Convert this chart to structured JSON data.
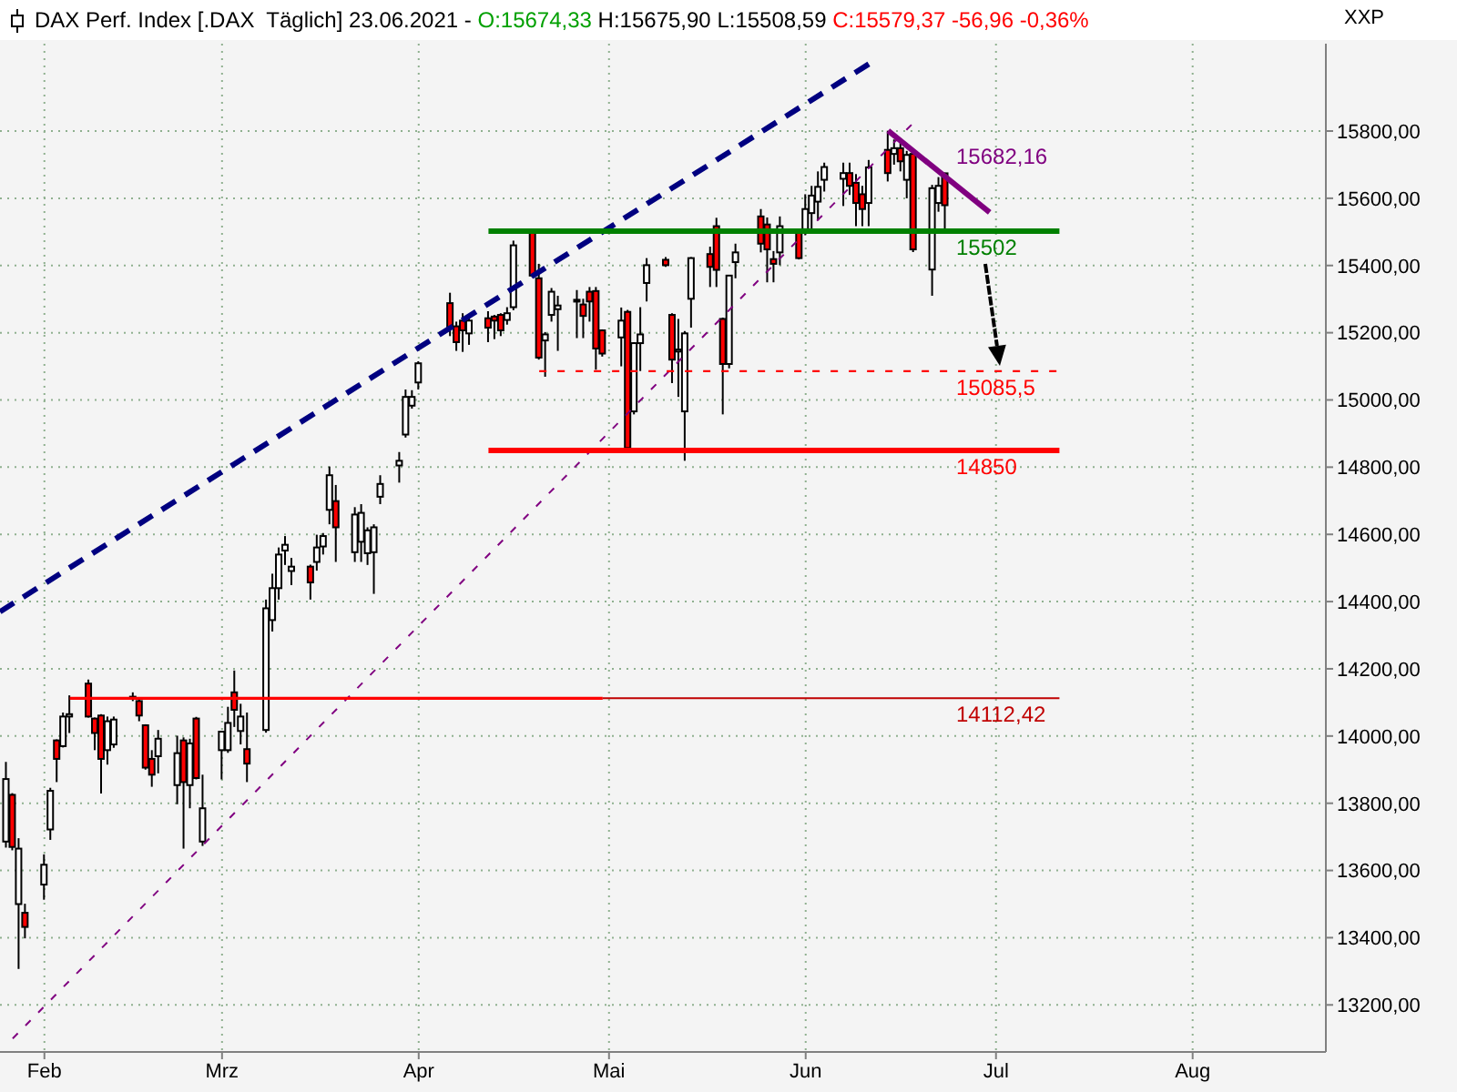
{
  "chart_data": {
    "type": "candlestick",
    "title": "DAX Perf. Index [.DAX  Täglich] 23.06.2021 -",
    "ylabel": "XXP",
    "x": [
      "2021-01-26",
      "2021-01-27",
      "2021-01-28",
      "2021-01-29",
      "2021-02-01",
      "2021-02-02",
      "2021-02-03",
      "2021-02-04",
      "2021-02-05",
      "2021-02-08",
      "2021-02-09",
      "2021-02-10",
      "2021-02-11",
      "2021-02-12",
      "2021-02-15",
      "2021-02-16",
      "2021-02-17",
      "2021-02-18",
      "2021-02-19",
      "2021-02-22",
      "2021-02-23",
      "2021-02-24",
      "2021-02-25",
      "2021-02-26",
      "2021-03-01",
      "2021-03-02",
      "2021-03-03",
      "2021-03-04",
      "2021-03-05",
      "2021-03-08",
      "2021-03-09",
      "2021-03-10",
      "2021-03-11",
      "2021-03-12",
      "2021-03-15",
      "2021-03-16",
      "2021-03-17",
      "2021-03-18",
      "2021-03-19",
      "2021-03-22",
      "2021-03-23",
      "2021-03-24",
      "2021-03-25",
      "2021-03-26",
      "2021-03-29",
      "2021-03-30",
      "2021-03-31",
      "2021-04-01",
      "2021-04-06",
      "2021-04-07",
      "2021-04-08",
      "2021-04-09",
      "2021-04-12",
      "2021-04-13",
      "2021-04-14",
      "2021-04-15",
      "2021-04-16",
      "2021-04-19",
      "2021-04-20",
      "2021-04-21",
      "2021-04-22",
      "2021-04-23",
      "2021-04-26",
      "2021-04-27",
      "2021-04-28",
      "2021-04-29",
      "2021-04-30",
      "2021-05-03",
      "2021-05-04",
      "2021-05-05",
      "2021-05-06",
      "2021-05-07",
      "2021-05-10",
      "2021-05-11",
      "2021-05-12",
      "2021-05-13",
      "2021-05-14",
      "2021-05-17",
      "2021-05-18",
      "2021-05-19",
      "2021-05-20",
      "2021-05-21",
      "2021-05-25",
      "2021-05-26",
      "2021-05-27",
      "2021-05-28",
      "2021-05-31",
      "2021-06-01",
      "2021-06-02",
      "2021-06-03",
      "2021-06-04",
      "2021-06-07",
      "2021-06-08",
      "2021-06-09",
      "2021-06-10",
      "2021-06-11",
      "2021-06-14",
      "2021-06-15",
      "2021-06-16",
      "2021-06-17",
      "2021-06-18",
      "2021-06-21",
      "2021-06-22",
      "2021-06-23"
    ],
    "ohlc": [
      [
        13686,
        13923,
        13668,
        13872
      ],
      [
        13825,
        13830,
        13660,
        13670
      ],
      [
        13500,
        13696,
        13307,
        13665
      ],
      [
        13474,
        13501,
        13398,
        13432
      ],
      [
        13558,
        13648,
        13513,
        13617
      ],
      [
        13722,
        13846,
        13691,
        13837
      ],
      [
        13987,
        13990,
        13863,
        13932
      ],
      [
        13970,
        14070,
        13966,
        14058
      ],
      [
        14058,
        14121,
        14009,
        14065
      ],
      [
        14156,
        14168,
        14055,
        14058
      ],
      [
        14052,
        14055,
        13958,
        14009
      ],
      [
        14061,
        14065,
        13829,
        13932
      ],
      [
        13958,
        14058,
        13915,
        14044
      ],
      [
        13975,
        14058,
        13965,
        14049
      ],
      [
        14113,
        14130,
        14104,
        14117
      ],
      [
        14104,
        14113,
        14044,
        14061
      ],
      [
        14032,
        14035,
        13900,
        13906
      ],
      [
        13932,
        13958,
        13849,
        13885
      ],
      [
        13940,
        14018,
        13889,
        13992
      ],
      [
        13854,
        14001,
        13797,
        13949
      ],
      [
        13987,
        13996,
        13665,
        13863
      ],
      [
        13854,
        13992,
        13785,
        13978
      ],
      [
        14052,
        14057,
        13871,
        13875
      ],
      [
        13686,
        13885,
        13673,
        13785
      ],
      [
        13958,
        14015,
        13871,
        14013
      ],
      [
        13958,
        14087,
        13950,
        14039
      ],
      [
        14130,
        14195,
        14027,
        14078
      ],
      [
        14015,
        14096,
        13975,
        14058
      ],
      [
        13961,
        14070,
        13863,
        13918
      ],
      [
        14018,
        14406,
        14010,
        14380
      ],
      [
        14345,
        14483,
        14311,
        14440
      ],
      [
        14440,
        14561,
        14406,
        14540
      ],
      [
        14552,
        14595,
        14509,
        14569
      ],
      [
        14491,
        14530,
        14449,
        14504
      ],
      [
        14504,
        14510,
        14406,
        14457
      ],
      [
        14518,
        14599,
        14492,
        14561
      ],
      [
        14564,
        14604,
        14540,
        14595
      ],
      [
        14673,
        14802,
        14630,
        14776
      ],
      [
        14699,
        14747,
        14518,
        14621
      ],
      [
        14547,
        14681,
        14518,
        14659
      ],
      [
        14578,
        14690,
        14518,
        14664
      ],
      [
        14544,
        14621,
        14509,
        14612
      ],
      [
        14547,
        14630,
        14423,
        14621
      ],
      [
        14712,
        14776,
        14690,
        14750
      ],
      [
        14805,
        14845,
        14754,
        14819
      ],
      [
        14897,
        15031,
        14888,
        15009
      ],
      [
        14983,
        15029,
        14974,
        15009
      ],
      [
        15052,
        15115,
        15031,
        15109
      ],
      [
        15288,
        15319,
        15190,
        15215
      ],
      [
        15219,
        15233,
        15146,
        15172
      ],
      [
        15236,
        15258,
        15143,
        15207
      ],
      [
        15198,
        15253,
        15164,
        15236
      ],
      [
        15243,
        15264,
        15172,
        15215
      ],
      [
        15248,
        15253,
        15181,
        15236
      ],
      [
        15253,
        15258,
        15190,
        15207
      ],
      [
        15238,
        15276,
        15224,
        15258
      ],
      [
        15276,
        15474,
        15267,
        15460
      ],
      [
        15500,
        15505,
        15365,
        15370
      ],
      [
        15362,
        15405,
        15120,
        15126
      ],
      [
        15177,
        15202,
        15069,
        15195
      ],
      [
        15253,
        15333,
        15233,
        15322
      ],
      [
        15270,
        15310,
        15146,
        15281
      ],
      [
        15293,
        15327,
        15184,
        15298
      ],
      [
        15284,
        15301,
        15184,
        15250
      ],
      [
        15322,
        15336,
        15233,
        15293
      ],
      [
        15324,
        15336,
        15090,
        15153
      ],
      [
        15207,
        15210,
        15129,
        15138
      ],
      [
        15186,
        15275,
        15100,
        15236
      ],
      [
        15262,
        15268,
        14850,
        14857
      ],
      [
        14966,
        15172,
        14957,
        15169
      ],
      [
        15169,
        15276,
        15086,
        15195
      ],
      [
        15348,
        15422,
        15293,
        15401
      ],
      [
        15417,
        15425,
        15396,
        15401
      ],
      [
        15253,
        15258,
        15050,
        15120
      ],
      [
        15144,
        15241,
        15009,
        15150
      ],
      [
        14966,
        15205,
        14819,
        15198
      ],
      [
        15301,
        15425,
        15215,
        15422
      ],
      [
        15434,
        15456,
        15336,
        15396
      ],
      [
        15517,
        15542,
        15336,
        15387
      ],
      [
        15241,
        15245,
        14957,
        15107
      ],
      [
        15107,
        15372,
        15094,
        15370
      ],
      [
        15410,
        15465,
        15362,
        15439
      ],
      [
        15546,
        15568,
        15439,
        15465
      ],
      [
        15522,
        15543,
        15350,
        15448
      ],
      [
        15419,
        15443,
        15350,
        15405
      ],
      [
        15439,
        15546,
        15401,
        15517
      ],
      [
        15500,
        15505,
        15418,
        15422
      ],
      [
        15508,
        15612,
        15490,
        15568
      ],
      [
        15556,
        15637,
        15508,
        15608
      ],
      [
        15590,
        15680,
        15534,
        15634
      ],
      [
        15655,
        15706,
        15620,
        15693
      ],
      [
        15658,
        15706,
        15577,
        15675
      ],
      [
        15675,
        15706,
        15610,
        15637
      ],
      [
        15646,
        15672,
        15517,
        15586
      ],
      [
        15612,
        15637,
        15517,
        15568
      ],
      [
        15586,
        15714,
        15517,
        15692
      ],
      [
        15744,
        15801,
        15650,
        15675
      ],
      [
        15732,
        15775,
        15700,
        15749
      ],
      [
        15749,
        15775,
        15680,
        15710
      ],
      [
        15655,
        15741,
        15600,
        15729
      ],
      [
        15732,
        15740,
        15440,
        15448
      ],
      [
        15388,
        15640,
        15310,
        15630
      ],
      [
        15586,
        15663,
        15560,
        15637
      ],
      [
        15674.33,
        15675.9,
        15508.59,
        15579.37
      ]
    ],
    "xlim": [
      "2021-01-25",
      "2021-08-22"
    ],
    "xticks": [
      {
        "value": "2021-02-01",
        "label": "Feb"
      },
      {
        "value": "2021-03-01",
        "label": "Mrz"
      },
      {
        "value": "2021-04-01",
        "label": "Apr"
      },
      {
        "value": "2021-05-01",
        "label": "Mai"
      },
      {
        "value": "2021-06-01",
        "label": "Jun"
      },
      {
        "value": "2021-07-01",
        "label": "Jul"
      },
      {
        "value": "2021-08-01",
        "label": "Aug"
      }
    ],
    "ylim": [
      13060,
      16060
    ],
    "yticks": [
      {
        "value": 13200,
        "label": "13200,00"
      },
      {
        "value": 13400,
        "label": "13400,00"
      },
      {
        "value": 13600,
        "label": "13600,00"
      },
      {
        "value": 13800,
        "label": "13800,00"
      },
      {
        "value": 14000,
        "label": "14000,00"
      },
      {
        "value": 14200,
        "label": "14200,00"
      },
      {
        "value": 14400,
        "label": "14400,00"
      },
      {
        "value": 14600,
        "label": "14600,00"
      },
      {
        "value": 14800,
        "label": "14800,00"
      },
      {
        "value": 15000,
        "label": "15000,00"
      },
      {
        "value": 15200,
        "label": "15200,00"
      },
      {
        "value": 15400,
        "label": "15400,00"
      },
      {
        "value": 15600,
        "label": "15600,00"
      },
      {
        "value": 15800,
        "label": "15800,00"
      }
    ],
    "grid": true,
    "series": [
      {
        "type": "line",
        "x": [
          "2021-01-25",
          "2021-06-11"
        ],
        "values": [
          14370,
          16000
        ],
        "color": "#000080",
        "line_style": "dashed"
      },
      {
        "type": "line",
        "x": [
          "2021-01-27",
          "2021-06-18"
        ],
        "values": [
          13100,
          15825
        ],
        "color": "#800080",
        "line_style": "dashed"
      },
      {
        "type": "line",
        "x": [
          "2021-06-14",
          "2021-06-30"
        ],
        "values": [
          15801,
          15558
        ],
        "color": "#800080",
        "line_style": "solid"
      },
      {
        "type": "line",
        "x": [
          "2021-04-12",
          "2021-07-11"
        ],
        "values": [
          15502,
          15502
        ],
        "color": "#008000",
        "line_style": "solid"
      },
      {
        "type": "line",
        "x": [
          "2021-04-20",
          "2021-07-11"
        ],
        "values": [
          15085.5,
          15085.5
        ],
        "color": "#ff0000",
        "line_style": "dashed"
      },
      {
        "type": "line",
        "x": [
          "2021-04-12",
          "2021-07-11"
        ],
        "values": [
          14850,
          14850
        ],
        "color": "#ff0000",
        "line_style": "solid"
      },
      {
        "type": "line",
        "x": [
          "2021-02-05",
          "2021-04-30"
        ],
        "values": [
          14112.42,
          14112.42
        ],
        "color": "#ff0000",
        "line_style": "solid"
      },
      {
        "type": "line",
        "x": [
          "2021-04-30",
          "2021-07-11"
        ],
        "values": [
          14112.42,
          14112.42
        ],
        "color": "#c00000",
        "line_style": "solid"
      }
    ],
    "annotations": [
      "O:15674,33",
      "H:15675,90 L:15508,59",
      "C:15579,37 -56,96 -0,36%",
      {
        "text": "15682,16",
        "x": "2021-06-23",
        "y": 15682.16
      },
      {
        "text": "15502",
        "x": "2021-06-23",
        "y": 15502
      },
      {
        "text": "15085,5",
        "x": "2021-06-23",
        "y": 15085.5
      },
      {
        "text": "14850",
        "x": "2021-06-23",
        "y": 14850
      },
      {
        "text": "14112,42",
        "x": "2021-06-23",
        "y": 14112.42
      }
    ]
  }
}
